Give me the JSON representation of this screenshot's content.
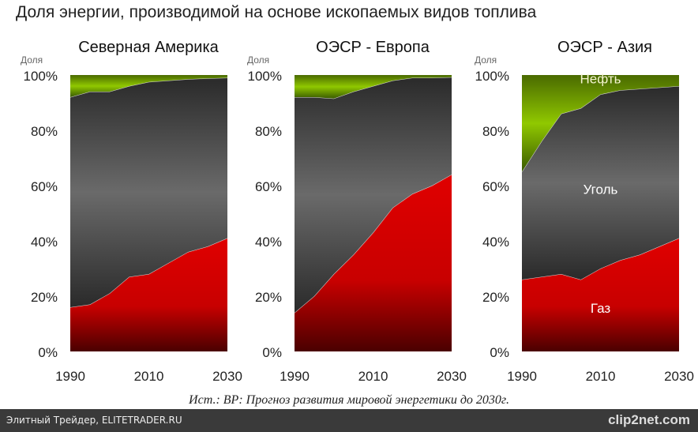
{
  "title": "Доля энергии, производимой на основе ископаемых видов топлива",
  "source": "Ист.: BP: Прогноз развития мировой энергетики до 2030г.",
  "footer": {
    "left": "Элитный Трейдер, ELITETRADER.RU",
    "right": "clip2net.com"
  },
  "colors": {
    "gas": "#d40000",
    "coal": "#555555",
    "oil": "#88c000"
  },
  "chart_data": [
    {
      "type": "area",
      "stacked": true,
      "title": "Северная Америка",
      "ylabel": "Доля",
      "ylim": [
        0,
        100
      ],
      "yticks": [
        "0%",
        "20%",
        "40%",
        "60%",
        "80%",
        "100%"
      ],
      "xticks": [
        "1990",
        "2010",
        "2030"
      ],
      "x": [
        1990,
        1995,
        2000,
        2005,
        2010,
        2015,
        2020,
        2025,
        2030
      ],
      "series": [
        {
          "values": [
            16,
            17,
            21,
            27,
            28,
            32,
            36,
            38,
            41
          ]
        },
        {
          "values": [
            76,
            77,
            73,
            69,
            69.5,
            66,
            62.5,
            60.8,
            58
          ]
        },
        {
          "values": [
            8,
            6,
            6,
            4,
            2.5,
            2,
            1.5,
            1.2,
            1
          ]
        }
      ]
    },
    {
      "type": "area",
      "stacked": true,
      "title": "ОЭСР - Европа",
      "ylabel": "Доля",
      "ylim": [
        0,
        100
      ],
      "yticks": [
        "0%",
        "20%",
        "40%",
        "60%",
        "80%",
        "100%"
      ],
      "xticks": [
        "1990",
        "2010",
        "2030"
      ],
      "x": [
        1990,
        1995,
        2000,
        2005,
        2010,
        2015,
        2020,
        2025,
        2030
      ],
      "series": [
        {
          "values": [
            14,
            20,
            28,
            35,
            43,
            52,
            57,
            60,
            64
          ]
        },
        {
          "values": [
            78,
            72,
            63.5,
            59,
            53,
            46,
            42,
            39,
            35.2
          ]
        },
        {
          "values": [
            8,
            8,
            8.5,
            6,
            4,
            2,
            1,
            1,
            0.8
          ]
        }
      ]
    },
    {
      "type": "area",
      "stacked": true,
      "title": "ОЭСР - Азия",
      "ylabel": "Доля",
      "ylim": [
        0,
        100
      ],
      "yticks": [
        "0%",
        "20%",
        "40%",
        "60%",
        "80%",
        "100%"
      ],
      "xticks": [
        "1990",
        "2010",
        "2030"
      ],
      "x": [
        1990,
        1995,
        2000,
        2005,
        2010,
        2015,
        2020,
        2025,
        2030
      ],
      "series": [
        {
          "name": "Газ",
          "values": [
            26,
            27,
            28,
            26,
            30,
            33,
            35,
            38,
            41
          ]
        },
        {
          "name": "Уголь",
          "values": [
            39,
            49,
            58,
            62,
            63,
            61.5,
            60,
            57.5,
            55
          ]
        },
        {
          "name": "Нефть",
          "values": [
            35,
            24,
            14,
            12,
            7,
            5.5,
            5,
            4.5,
            4
          ]
        }
      ]
    }
  ]
}
